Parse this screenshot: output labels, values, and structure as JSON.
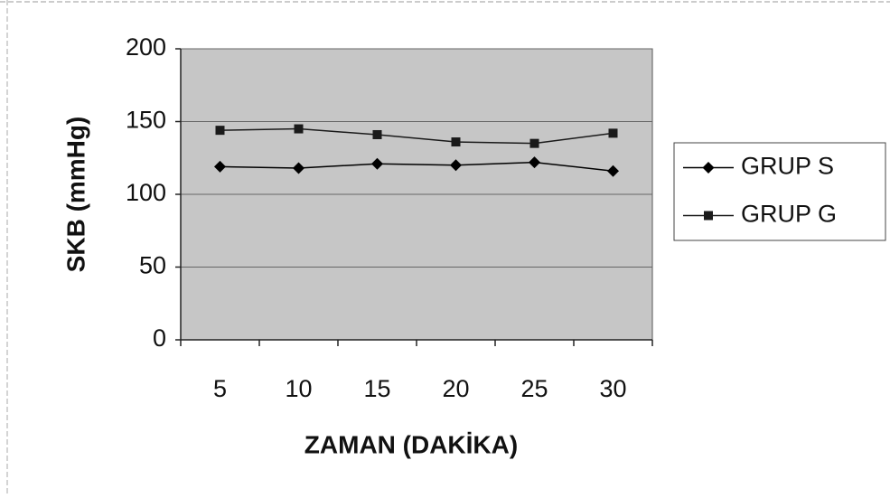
{
  "chart_data": {
    "type": "line",
    "x_label": "ZAMAN (DAKİKA)",
    "y_label": "SKB (mmHg)",
    "categories": [
      "5",
      "10",
      "15",
      "20",
      "25",
      "30"
    ],
    "series": [
      {
        "name": "GRUP S",
        "color": "#000000",
        "marker": "diamond",
        "values": [
          119,
          118,
          121,
          120,
          122,
          116
        ]
      },
      {
        "name": "GRUP G",
        "color": "#1a1a1a",
        "marker": "square",
        "values": [
          144,
          145,
          141,
          136,
          135,
          142
        ]
      }
    ],
    "ylim": [
      0,
      200
    ],
    "yticks": [
      0,
      50,
      100,
      150,
      200
    ],
    "grid": true,
    "legend": "right",
    "plot_background": "#c6c6c6"
  }
}
